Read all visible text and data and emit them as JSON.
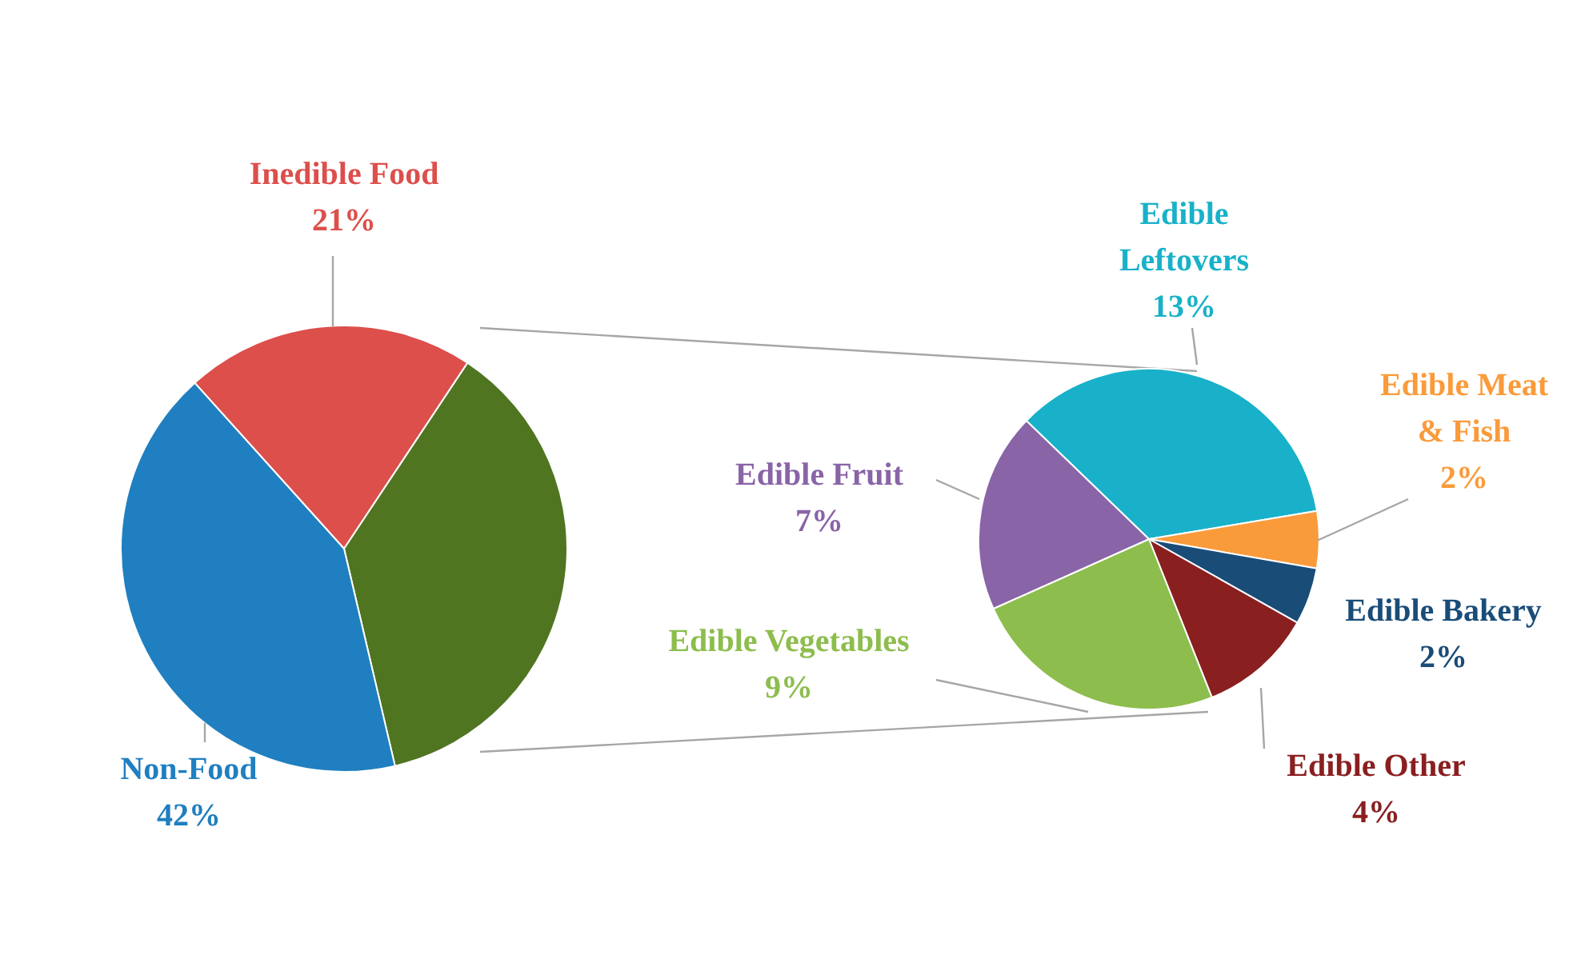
{
  "chart_data": [
    {
      "type": "pie",
      "categories": [
        "Inedible Food",
        null,
        "Non-Food"
      ],
      "values": [
        21,
        37,
        42
      ],
      "colors": [
        "#dc4f4b",
        "#4f7521",
        "#1f7fc0"
      ],
      "value_labels": [
        "21%",
        null,
        "42%"
      ]
    },
    {
      "type": "pie",
      "categories": [
        "Edible Leftovers",
        "Edible Meat & Fish",
        "Edible Bakery",
        "Edible Other",
        "Edible Vegetables",
        "Edible Fruit"
      ],
      "values": [
        13,
        2,
        2,
        4,
        9,
        7
      ],
      "colors": [
        "#18b1c9",
        "#f99b3b",
        "#1a4c78",
        "#8a1f20",
        "#8dbd4d",
        "#8964a7"
      ],
      "value_labels": [
        "13%",
        "2%",
        "2%",
        "4%",
        "9%",
        "7%"
      ]
    }
  ]
}
